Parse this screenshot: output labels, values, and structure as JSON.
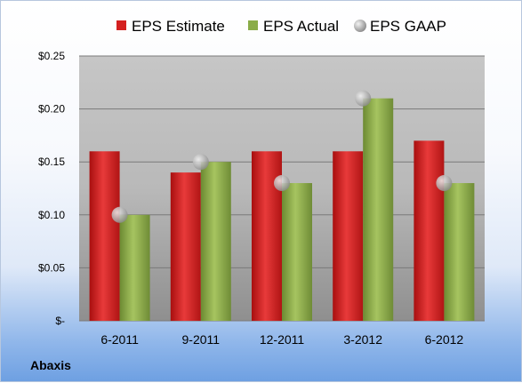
{
  "chart_data": {
    "type": "bar",
    "categories": [
      "6-2011",
      "9-2011",
      "12-2011",
      "3-2012",
      "6-2012"
    ],
    "series": [
      {
        "name": "EPS Estimate",
        "kind": "bar",
        "color": "#d42020",
        "values": [
          0.16,
          0.14,
          0.16,
          0.16,
          0.17
        ]
      },
      {
        "name": "EPS Actual",
        "kind": "bar",
        "color": "#8aac48",
        "values": [
          0.1,
          0.15,
          0.13,
          0.21,
          0.13
        ]
      },
      {
        "name": "EPS GAAP",
        "kind": "scatter",
        "color": "#a9a9a9",
        "values": [
          0.1,
          0.15,
          0.13,
          0.21,
          0.13
        ]
      }
    ],
    "ylim": [
      0,
      0.25
    ],
    "yticks": [
      0,
      0.05,
      0.1,
      0.15,
      0.2,
      0.25
    ],
    "ytick_labels": [
      "$-",
      "$0.05",
      "$0.10",
      "$0.15",
      "$0.20",
      "$0.25"
    ],
    "grid": true,
    "legend_position": "top"
  },
  "company": "Abaxis"
}
